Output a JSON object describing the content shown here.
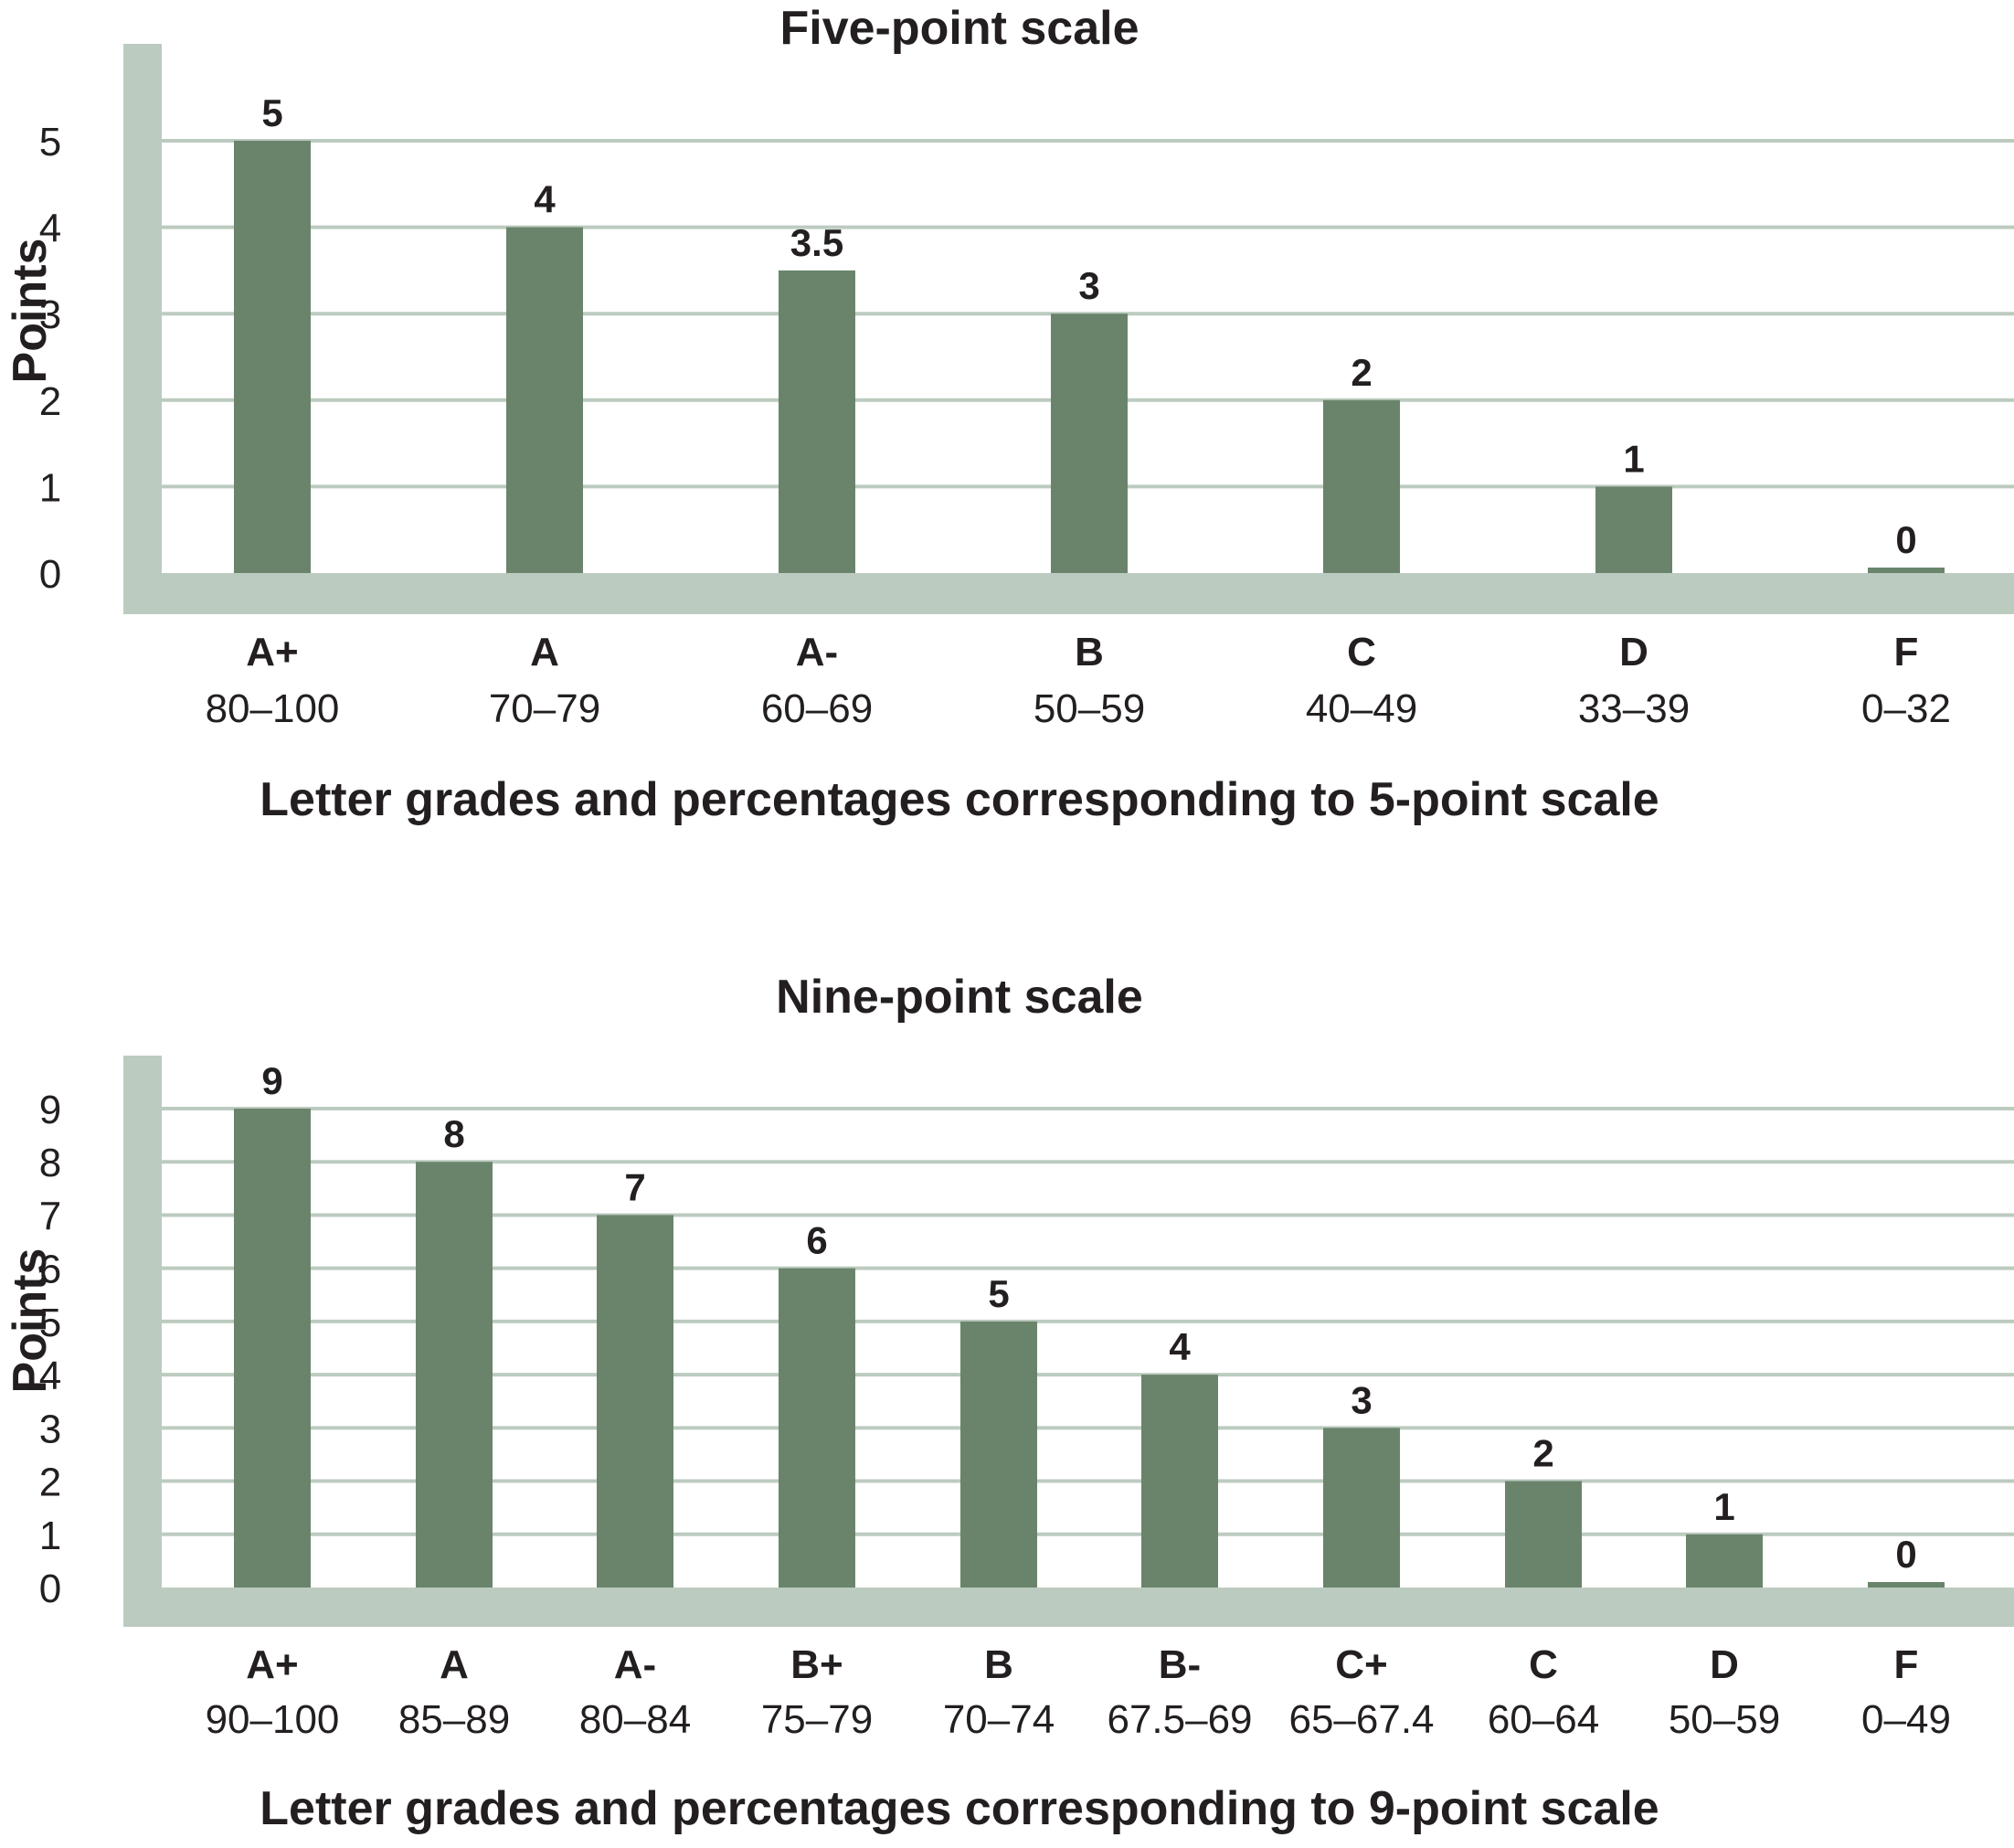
{
  "colors": {
    "bar": "#6a846c",
    "axis_band": "#bccbbf",
    "grid": "#bccbbf",
    "text": "#231f20"
  },
  "chart_data": [
    {
      "type": "bar",
      "title": "Five-point scale",
      "ylabel": "Points",
      "xlabel": "Letter grades and percentages corresponding to 5-point scale",
      "ylim": [
        0,
        5
      ],
      "yticks": [
        "0",
        "1",
        "2",
        "3",
        "4",
        "5"
      ],
      "grid": true,
      "categories": [
        "A+",
        "A",
        "A-",
        "B",
        "C",
        "D",
        "F"
      ],
      "ranges": [
        "80–100",
        "70–79",
        "60–69",
        "50–59",
        "40–49",
        "33–39",
        "0–32"
      ],
      "values": [
        5,
        4,
        3.5,
        3,
        2,
        1,
        0
      ],
      "value_labels": [
        "5",
        "4",
        "3.5",
        "3",
        "2",
        "1",
        "0"
      ]
    },
    {
      "type": "bar",
      "title": "Nine-point scale",
      "ylabel": "Points",
      "xlabel": "Letter grades and percentages corresponding to 9-point scale",
      "ylim": [
        0,
        9
      ],
      "yticks": [
        "0",
        "1",
        "2",
        "3",
        "4",
        "5",
        "6",
        "7",
        "8",
        "9"
      ],
      "grid": true,
      "categories": [
        "A+",
        "A",
        "A-",
        "B+",
        "B",
        "B-",
        "C+",
        "C",
        "D",
        "F"
      ],
      "ranges": [
        "90–100",
        "85–89",
        "80–84",
        "75–79",
        "70–74",
        "67.5–69",
        "65–67.4",
        "60–64",
        "50–59",
        "0–49"
      ],
      "values": [
        9,
        8,
        7,
        6,
        5,
        4,
        3,
        2,
        1,
        0
      ],
      "value_labels": [
        "9",
        "8",
        "7",
        "6",
        "5",
        "4",
        "3",
        "2",
        "1",
        "0"
      ]
    }
  ]
}
